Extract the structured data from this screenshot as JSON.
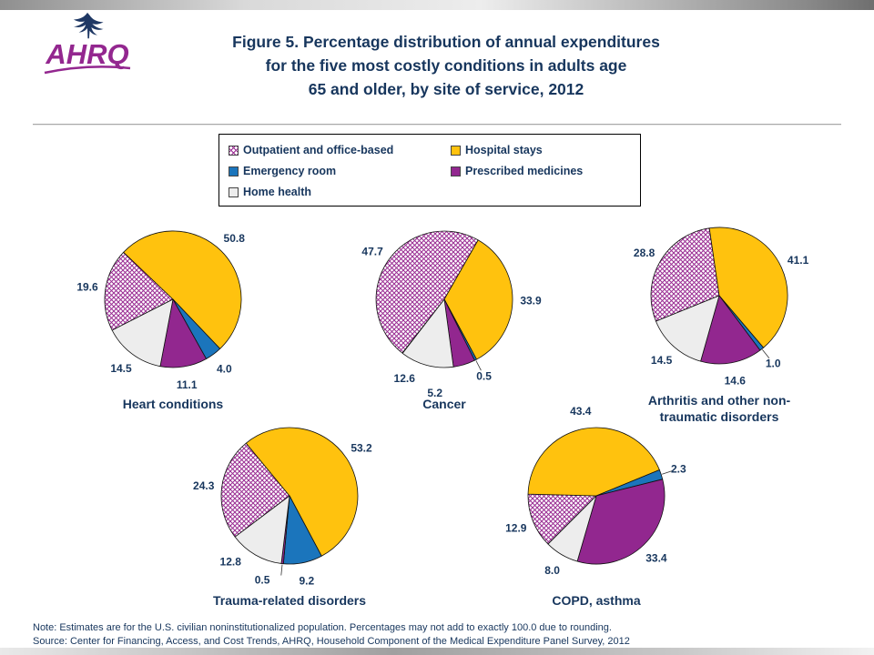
{
  "header": {
    "logo_text": "AHRQ",
    "title_lines": [
      "Figure 5. Percentage distribution of annual expenditures",
      "for the five most costly conditions in adults age",
      "65 and older, by site of service, 2012"
    ]
  },
  "legend": {
    "items": [
      {
        "label": "Outpatient and office-based",
        "swatch": "hatched"
      },
      {
        "label": "Hospital stays",
        "swatch": "#FFC20E"
      },
      {
        "label": "Emergency room",
        "swatch": "#1B75BC"
      },
      {
        "label": "Prescribed medicines",
        "swatch": "#92278F"
      },
      {
        "label": "Home health",
        "swatch": "#EDEDED"
      }
    ]
  },
  "colors": {
    "title_text": "#17365D",
    "hatch_line": "#9A2D93",
    "slice_stroke": "#111111",
    "logo_purple": "#93278F",
    "eagle_navy": "#1F3864"
  },
  "chart_data": [
    {
      "type": "pie",
      "title": "Heart conditions",
      "categories": [
        "Outpatient and office-based",
        "Hospital stays",
        "Emergency room",
        "Prescribed medicines",
        "Home health"
      ],
      "values": [
        19.6,
        50.8,
        4.0,
        11.1,
        14.5
      ],
      "start_angle_deg": 243,
      "legend_position": "top-shared"
    },
    {
      "type": "pie",
      "title": "Cancer",
      "categories": [
        "Outpatient and office-based",
        "Hospital stays",
        "Emergency room",
        "Prescribed medicines",
        "Home health"
      ],
      "values": [
        47.7,
        33.9,
        0.5,
        5.2,
        12.6
      ],
      "start_angle_deg": 218,
      "legend_position": "top-shared"
    },
    {
      "type": "pie",
      "title": "Arthritis and other non-traumatic disorders",
      "categories": [
        "Outpatient and office-based",
        "Hospital stays",
        "Emergency room",
        "Prescribed medicines",
        "Home health"
      ],
      "values": [
        28.8,
        41.1,
        1.0,
        14.6,
        14.5
      ],
      "start_angle_deg": 248,
      "legend_position": "top-shared"
    },
    {
      "type": "pie",
      "title": "Trauma-related disorders",
      "categories": [
        "Outpatient and office-based",
        "Hospital stays",
        "Emergency room",
        "Prescribed medicines",
        "Home health"
      ],
      "values": [
        24.3,
        53.2,
        9.2,
        0.5,
        12.8
      ],
      "start_angle_deg": 233,
      "legend_position": "top-shared"
    },
    {
      "type": "pie",
      "title": "COPD, asthma",
      "categories": [
        "Outpatient and office-based",
        "Hospital stays",
        "Emergency room",
        "Prescribed medicines",
        "Home health"
      ],
      "values": [
        12.9,
        43.4,
        2.3,
        33.4,
        8.0
      ],
      "start_angle_deg": 225,
      "legend_position": "top-shared"
    }
  ],
  "footer": {
    "note": "Note: Estimates are for the U.S. civilian noninstitutionalized population. Percentages may not add to exactly 100.0 due to rounding.",
    "source": "Source: Center for Financing, Access, and Cost Trends, AHRQ, Household Component of the Medical Expenditure Panel Survey, 2012"
  }
}
